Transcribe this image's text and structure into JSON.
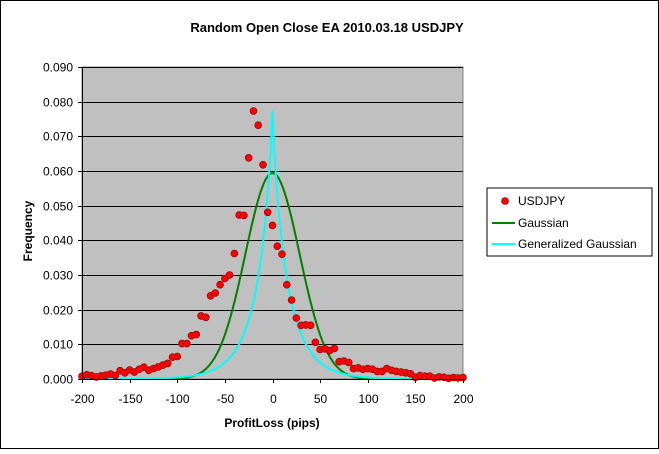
{
  "chart_data": {
    "type": "scatter",
    "title": "Random Open Close EA 2010.03.18 USDJPY",
    "xlabel": "ProfitLoss (pips)",
    "ylabel": "Frequency",
    "xlim": [
      -200,
      200
    ],
    "ylim": [
      0,
      0.09
    ],
    "xticks": [
      "-200",
      "-150",
      "-100",
      "-50",
      "0",
      "50",
      "100",
      "150",
      "200"
    ],
    "yticks": [
      "0.000",
      "0.010",
      "0.020",
      "0.030",
      "0.040",
      "0.050",
      "0.060",
      "0.070",
      "0.080",
      "0.090"
    ],
    "grid": true,
    "plot_background": "#c0c0c0",
    "legend_position": "right",
    "series": [
      {
        "name": "USDJPY",
        "kind": "markers",
        "color": "#ff0000",
        "x": [
          -200,
          -195,
          -190,
          -185,
          -180,
          -175,
          -170,
          -165,
          -160,
          -155,
          -150,
          -145,
          -140,
          -135,
          -130,
          -125,
          -120,
          -115,
          -110,
          -105,
          -100,
          -95,
          -90,
          -85,
          -80,
          -75,
          -70,
          -65,
          -60,
          -55,
          -50,
          -45,
          -40,
          -35,
          -30,
          -25,
          -20,
          -15,
          -10,
          -5,
          0,
          5,
          10,
          15,
          20,
          25,
          30,
          35,
          40,
          45,
          50,
          55,
          60,
          65,
          70,
          75,
          80,
          85,
          90,
          95,
          100,
          105,
          110,
          115,
          120,
          125,
          130,
          135,
          140,
          145,
          150,
          155,
          160,
          165,
          170,
          175,
          180,
          185,
          190,
          195,
          200
        ],
        "y": [
          0.0008,
          0.0012,
          0.001,
          0.0006,
          0.0009,
          0.0011,
          0.0014,
          0.001,
          0.0024,
          0.0018,
          0.0026,
          0.002,
          0.0028,
          0.0034,
          0.0025,
          0.003,
          0.0035,
          0.004,
          0.0045,
          0.0063,
          0.0065,
          0.0102,
          0.0102,
          0.0125,
          0.0128,
          0.0182,
          0.0178,
          0.024,
          0.0248,
          0.0272,
          0.029,
          0.03,
          0.0362,
          0.0473,
          0.0472,
          0.0638,
          0.0773,
          0.0732,
          0.0618,
          0.0481,
          0.0443,
          0.0383,
          0.036,
          0.0272,
          0.0228,
          0.0176,
          0.0155,
          0.0156,
          0.0155,
          0.0106,
          0.0085,
          0.0087,
          0.0082,
          0.0088,
          0.005,
          0.0052,
          0.0048,
          0.003,
          0.0032,
          0.0028,
          0.003,
          0.0028,
          0.0022,
          0.0022,
          0.003,
          0.0025,
          0.0022,
          0.002,
          0.0018,
          0.0015,
          0.0005,
          0.001,
          0.0008,
          0.0008,
          0.0003,
          0.0006,
          0.0005,
          0.0002,
          0.0004,
          0.0003,
          0.0004
        ]
      },
      {
        "name": "Gaussian",
        "kind": "line",
        "color": "#008000",
        "function": "gaussian",
        "amplitude": 0.0594,
        "center": 0,
        "sigma": 28.5
      },
      {
        "name": "Generalized Gaussian",
        "kind": "line",
        "color": "#00ffff",
        "function": "generalized_gaussian",
        "amplitude": 0.0772,
        "center": 0,
        "scale": 15.6,
        "shape": 0.88
      }
    ]
  }
}
